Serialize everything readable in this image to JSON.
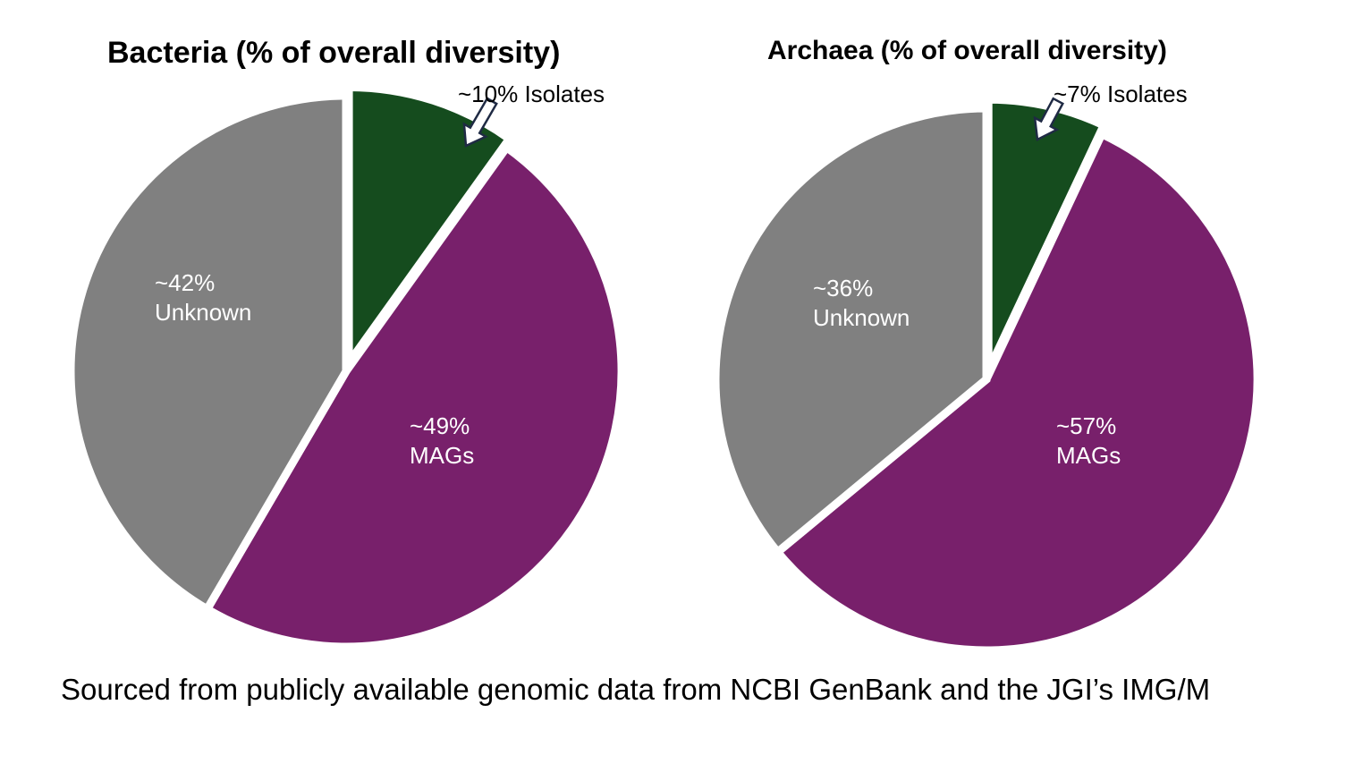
{
  "chart_data": [
    {
      "type": "pie",
      "title": "Bacteria (% of overall diversity)",
      "slices": [
        {
          "name": "Isolates",
          "value": 10,
          "label": "~10% Isolates",
          "color": "#154c1e",
          "exploded": true,
          "callout": true
        },
        {
          "name": "MAGs",
          "value": 49,
          "label_pct": "~49%",
          "label_name": "MAGs",
          "color": "#78206b",
          "exploded": false
        },
        {
          "name": "Unknown",
          "value": 42,
          "label_pct": "~42%",
          "label_name": "Unknown",
          "color": "#808080",
          "exploded": false
        }
      ]
    },
    {
      "type": "pie",
      "title": "Archaea  (% of overall diversity)",
      "slices": [
        {
          "name": "Isolates",
          "value": 7,
          "label": "~7% Isolates",
          "color": "#154c1e",
          "exploded": true,
          "callout": true
        },
        {
          "name": "MAGs",
          "value": 57,
          "label_pct": "~57%",
          "label_name": "MAGs",
          "color": "#78206b",
          "exploded": false
        },
        {
          "name": "Unknown",
          "value": 36,
          "label_pct": "~36%",
          "label_name": "Unknown",
          "color": "#808080",
          "exploded": false
        }
      ]
    }
  ],
  "footer": {
    "source": "Sourced from publicly available genomic data from NCBI GenBank and the JGI’s IMG/M"
  }
}
